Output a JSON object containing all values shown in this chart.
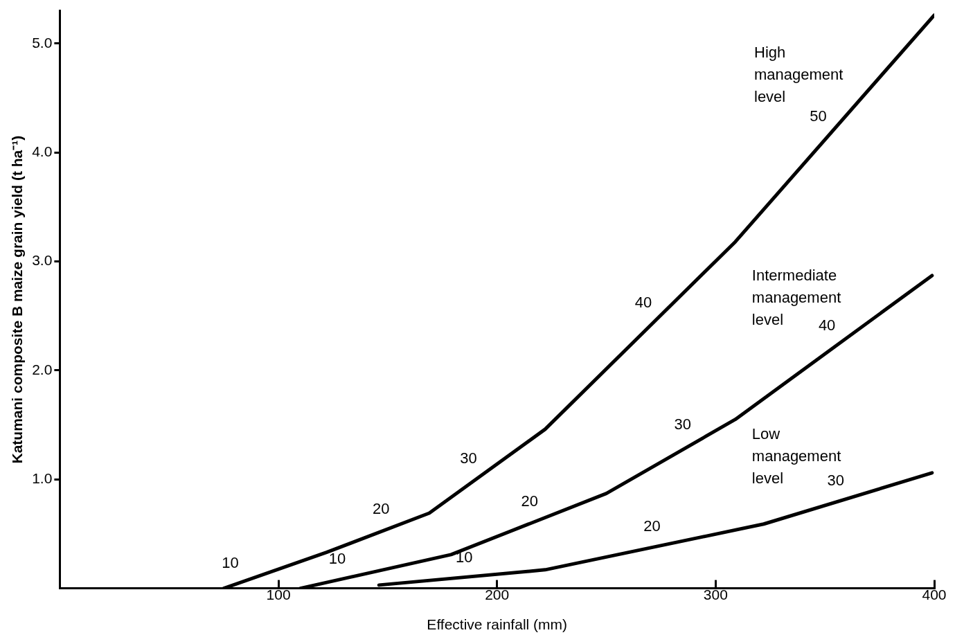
{
  "chart_data": {
    "type": "line",
    "xlabel": "Effective rainfall (mm)",
    "ylabel": "Katumani composite B maize grain yield (t ha⁻¹)",
    "xlim": [
      0,
      400
    ],
    "xticks": [
      100,
      200,
      300,
      400
    ],
    "ylim": [
      0,
      5.3
    ],
    "yticks": [
      {
        "value": 1,
        "label": "1.0"
      },
      {
        "value": 2,
        "label": "2.0"
      },
      {
        "value": 3,
        "label": "3.0"
      },
      {
        "value": 4,
        "label": "4.0"
      },
      {
        "value": 5,
        "label": "5.0"
      }
    ],
    "grid": false,
    "legend": false,
    "marker": "none",
    "line_style": "solid",
    "series": [
      {
        "name": "High management level",
        "color": "#000000",
        "x": [
          75,
          122,
          169,
          222,
          309,
          400
        ],
        "values": [
          0,
          0.33,
          0.69,
          1.46,
          3.18,
          5.26
        ]
      },
      {
        "name": "Intermediate management level",
        "color": "#000000",
        "x": [
          110,
          179,
          250,
          309,
          399
        ],
        "values": [
          0,
          0.31,
          0.87,
          1.55,
          2.87
        ]
      },
      {
        "name": "Low management level",
        "color": "#000000",
        "x": [
          146,
          222,
          322,
          399
        ],
        "values": [
          0.03,
          0.17,
          0.59,
          1.06
        ]
      }
    ],
    "annotations": [
      {
        "text": "10",
        "x": 83,
        "y": 0.06
      },
      {
        "text": "20",
        "x": 152,
        "y": 0.56
      },
      {
        "text": "30",
        "x": 192,
        "y": 1.02
      },
      {
        "text": "40",
        "x": 272,
        "y": 2.45
      },
      {
        "text": "50",
        "x": 352,
        "y": 4.16
      },
      {
        "text": "10",
        "x": 132,
        "y": 0.1
      },
      {
        "text": "20",
        "x": 220,
        "y": 0.63
      },
      {
        "text": "30",
        "x": 290,
        "y": 1.33
      },
      {
        "text": "40",
        "x": 356,
        "y": 2.24
      },
      {
        "text": "10",
        "x": 190,
        "y": 0.11
      },
      {
        "text": "20",
        "x": 276,
        "y": 0.4
      },
      {
        "text": "30",
        "x": 360,
        "y": 0.82
      }
    ]
  }
}
